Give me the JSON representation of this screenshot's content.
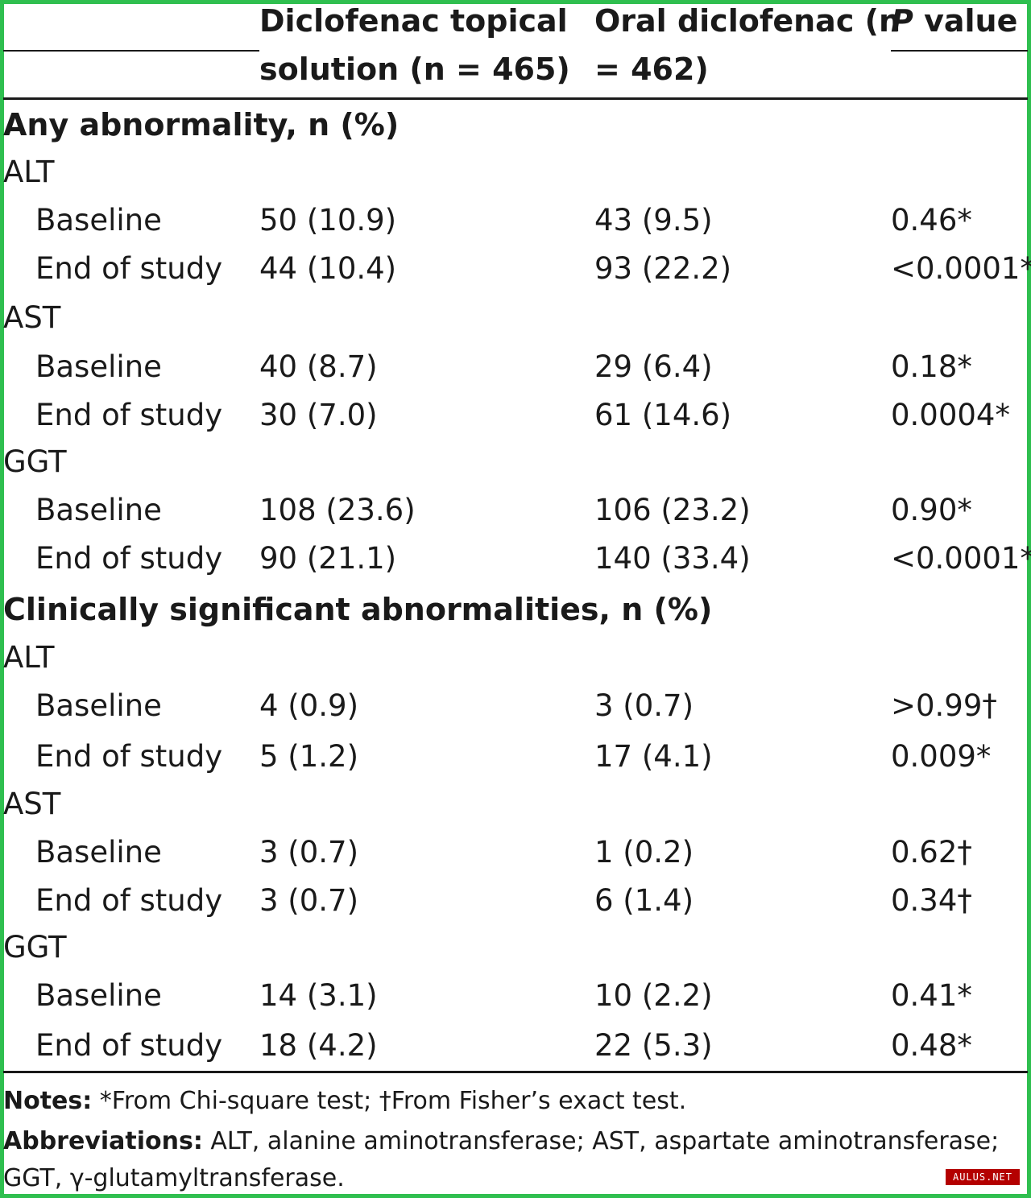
{
  "header": {
    "col1_line1": "Diclofenac topical",
    "col1_line2": "solution (n = 465)",
    "col2_line1": "Oral diclofenac (n",
    "col2_line2": "= 462)",
    "col3_prefix": "P",
    "col3_rest": " value"
  },
  "sections": [
    {
      "title": "Any abnormality, n (%)",
      "groups": [
        {
          "name": "ALT",
          "rows": [
            {
              "label": "Baseline",
              "topical": "50 (10.9)",
              "oral": "43 (9.5)",
              "p": "0.46*"
            },
            {
              "label": "End of study",
              "topical": "44 (10.4)",
              "oral": "93 (22.2)",
              "p": "<0.0001*"
            }
          ]
        },
        {
          "name": "AST",
          "rows": [
            {
              "label": "Baseline",
              "topical": "40 (8.7)",
              "oral": "29 (6.4)",
              "p": "0.18*"
            },
            {
              "label": "End of study",
              "topical": "30 (7.0)",
              "oral": "61 (14.6)",
              "p": "0.0004*"
            }
          ]
        },
        {
          "name": "GGT",
          "rows": [
            {
              "label": "Baseline",
              "topical": "108 (23.6)",
              "oral": "106 (23.2)",
              "p": "0.90*"
            },
            {
              "label": "End of study",
              "topical": "90 (21.1)",
              "oral": "140 (33.4)",
              "p": "<0.0001*"
            }
          ]
        }
      ]
    },
    {
      "title": "Clinically significant abnormalities, n (%)",
      "groups": [
        {
          "name": "ALT",
          "rows": [
            {
              "label": "Baseline",
              "topical": "4 (0.9)",
              "oral": "3 (0.7)",
              "p": ">0.99†"
            },
            {
              "label": "End of study",
              "topical": "5 (1.2)",
              "oral": "17 (4.1)",
              "p": "0.009*"
            }
          ]
        },
        {
          "name": "AST",
          "rows": [
            {
              "label": "Baseline",
              "topical": "3 (0.7)",
              "oral": "1 (0.2)",
              "p": "0.62†"
            },
            {
              "label": "End of study",
              "topical": "3 (0.7)",
              "oral": "6 (1.4)",
              "p": "0.34†"
            }
          ]
        },
        {
          "name": "GGT",
          "rows": [
            {
              "label": "Baseline",
              "topical": "14 (3.1)",
              "oral": "10 (2.2)",
              "p": "0.41*"
            },
            {
              "label": "End of study",
              "topical": "18 (4.2)",
              "oral": "22 (5.3)",
              "p": "0.48*"
            }
          ]
        }
      ]
    }
  ],
  "notes": {
    "notes_label": "Notes:",
    "notes_text": " *From Chi-square test; †From Fisher’s exact test.",
    "abbrev_label": "Abbreviations:",
    "abbrev_text_1": " ALT, alanine aminotransferase; AST, aspartate aminotransferase;",
    "abbrev_text_2": "GGT, γ-glutamyltransferase."
  },
  "watermark": "AULUS.NET",
  "colors": {
    "frame": "#2fbf4f",
    "text": "#1a1a1a",
    "watermark_bg": "#b40000"
  }
}
